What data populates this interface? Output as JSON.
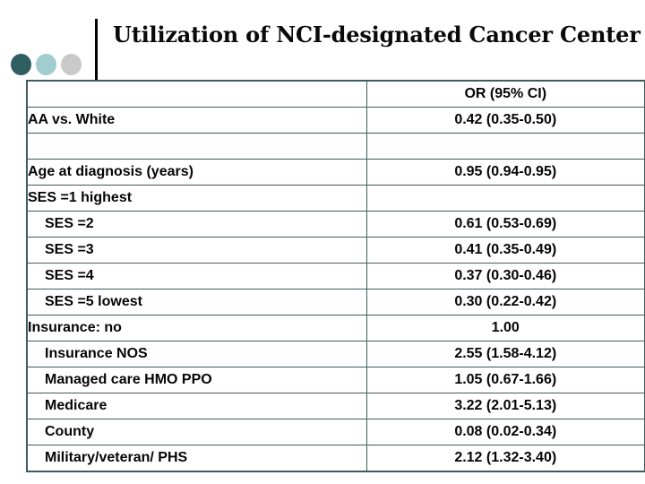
{
  "slide": {
    "title": "Utilization of NCI-designated Cancer Center"
  },
  "decoration": {
    "dots": [
      {
        "name": "dark-teal-dot",
        "color": "#2F5D60"
      },
      {
        "name": "light-teal-dot",
        "color": "#A2CDCF"
      },
      {
        "name": "gray-dot",
        "color": "#C9C9C9"
      }
    ],
    "divider_color": "#000000"
  },
  "table": {
    "border_color": "#3E5C5C",
    "columns": [
      "",
      "OR (95% CI)"
    ],
    "rows": [
      {
        "label": "AA vs. White",
        "value": "0.42 (0.35-0.50)",
        "indent": false
      },
      {
        "label": "",
        "value": "",
        "indent": false
      },
      {
        "label": "Age at diagnosis (years)",
        "value": "0.95 (0.94-0.95)",
        "indent": false
      },
      {
        "label": "SES =1 highest",
        "value": "",
        "indent": false
      },
      {
        "label": "SES =2",
        "value": "0.61 (0.53-0.69)",
        "indent": true
      },
      {
        "label": "SES =3",
        "value": "0.41 (0.35-0.49)",
        "indent": true
      },
      {
        "label": "SES =4",
        "value": "0.37 (0.30-0.46)",
        "indent": true
      },
      {
        "label": "SES =5 lowest",
        "value": "0.30 (0.22-0.42)",
        "indent": true
      },
      {
        "label": "Insurance: no",
        "value": "1.00",
        "indent": false
      },
      {
        "label": "Insurance NOS",
        "value": "2.55 (1.58-4.12)",
        "indent": true
      },
      {
        "label": "Managed care HMO PPO",
        "value": "1.05 (0.67-1.66)",
        "indent": true
      },
      {
        "label": "Medicare",
        "value": "3.22 (2.01-5.13)",
        "indent": true
      },
      {
        "label": "County",
        "value": "0.08 (0.02-0.34)",
        "indent": true
      },
      {
        "label": "Military/veteran/ PHS",
        "value": "2.12 (1.32-3.40)",
        "indent": true
      }
    ]
  }
}
